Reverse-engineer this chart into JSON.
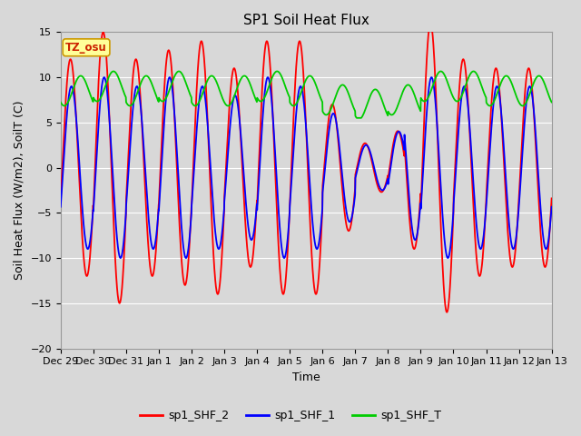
{
  "title": "SP1 Soil Heat Flux",
  "xlabel": "Time",
  "ylabel": "Soil Heat Flux (W/m2), SoilT (C)",
  "ylim": [
    -20,
    15
  ],
  "yticks": [
    -20,
    -15,
    -10,
    -5,
    0,
    5,
    10,
    15
  ],
  "n_days": 15,
  "tick_labels": [
    "Dec 29",
    "Dec 30",
    "Dec 31",
    "Jan 1",
    "Jan 2",
    "Jan 3",
    "Jan 4",
    "Jan 5",
    "Jan 6",
    "Jan 7",
    "Jan 8",
    "Jan 9",
    "Jan 10",
    "Jan 11",
    "Jan 12",
    "Jan 13"
  ],
  "background_color": "#d8d8d8",
  "plot_bg_color": "#d8d8d8",
  "grid_color": "#ffffff",
  "legend_labels": [
    "sp1_SHF_2",
    "sp1_SHF_1",
    "sp1_SHF_T"
  ],
  "legend_colors": [
    "#ff0000",
    "#0000ff",
    "#00cc00"
  ],
  "tz_label": "TZ_osu",
  "tz_bg": "#ffff99",
  "tz_border": "#cc9900",
  "title_fontsize": 11,
  "axis_fontsize": 9,
  "tick_fontsize": 8
}
